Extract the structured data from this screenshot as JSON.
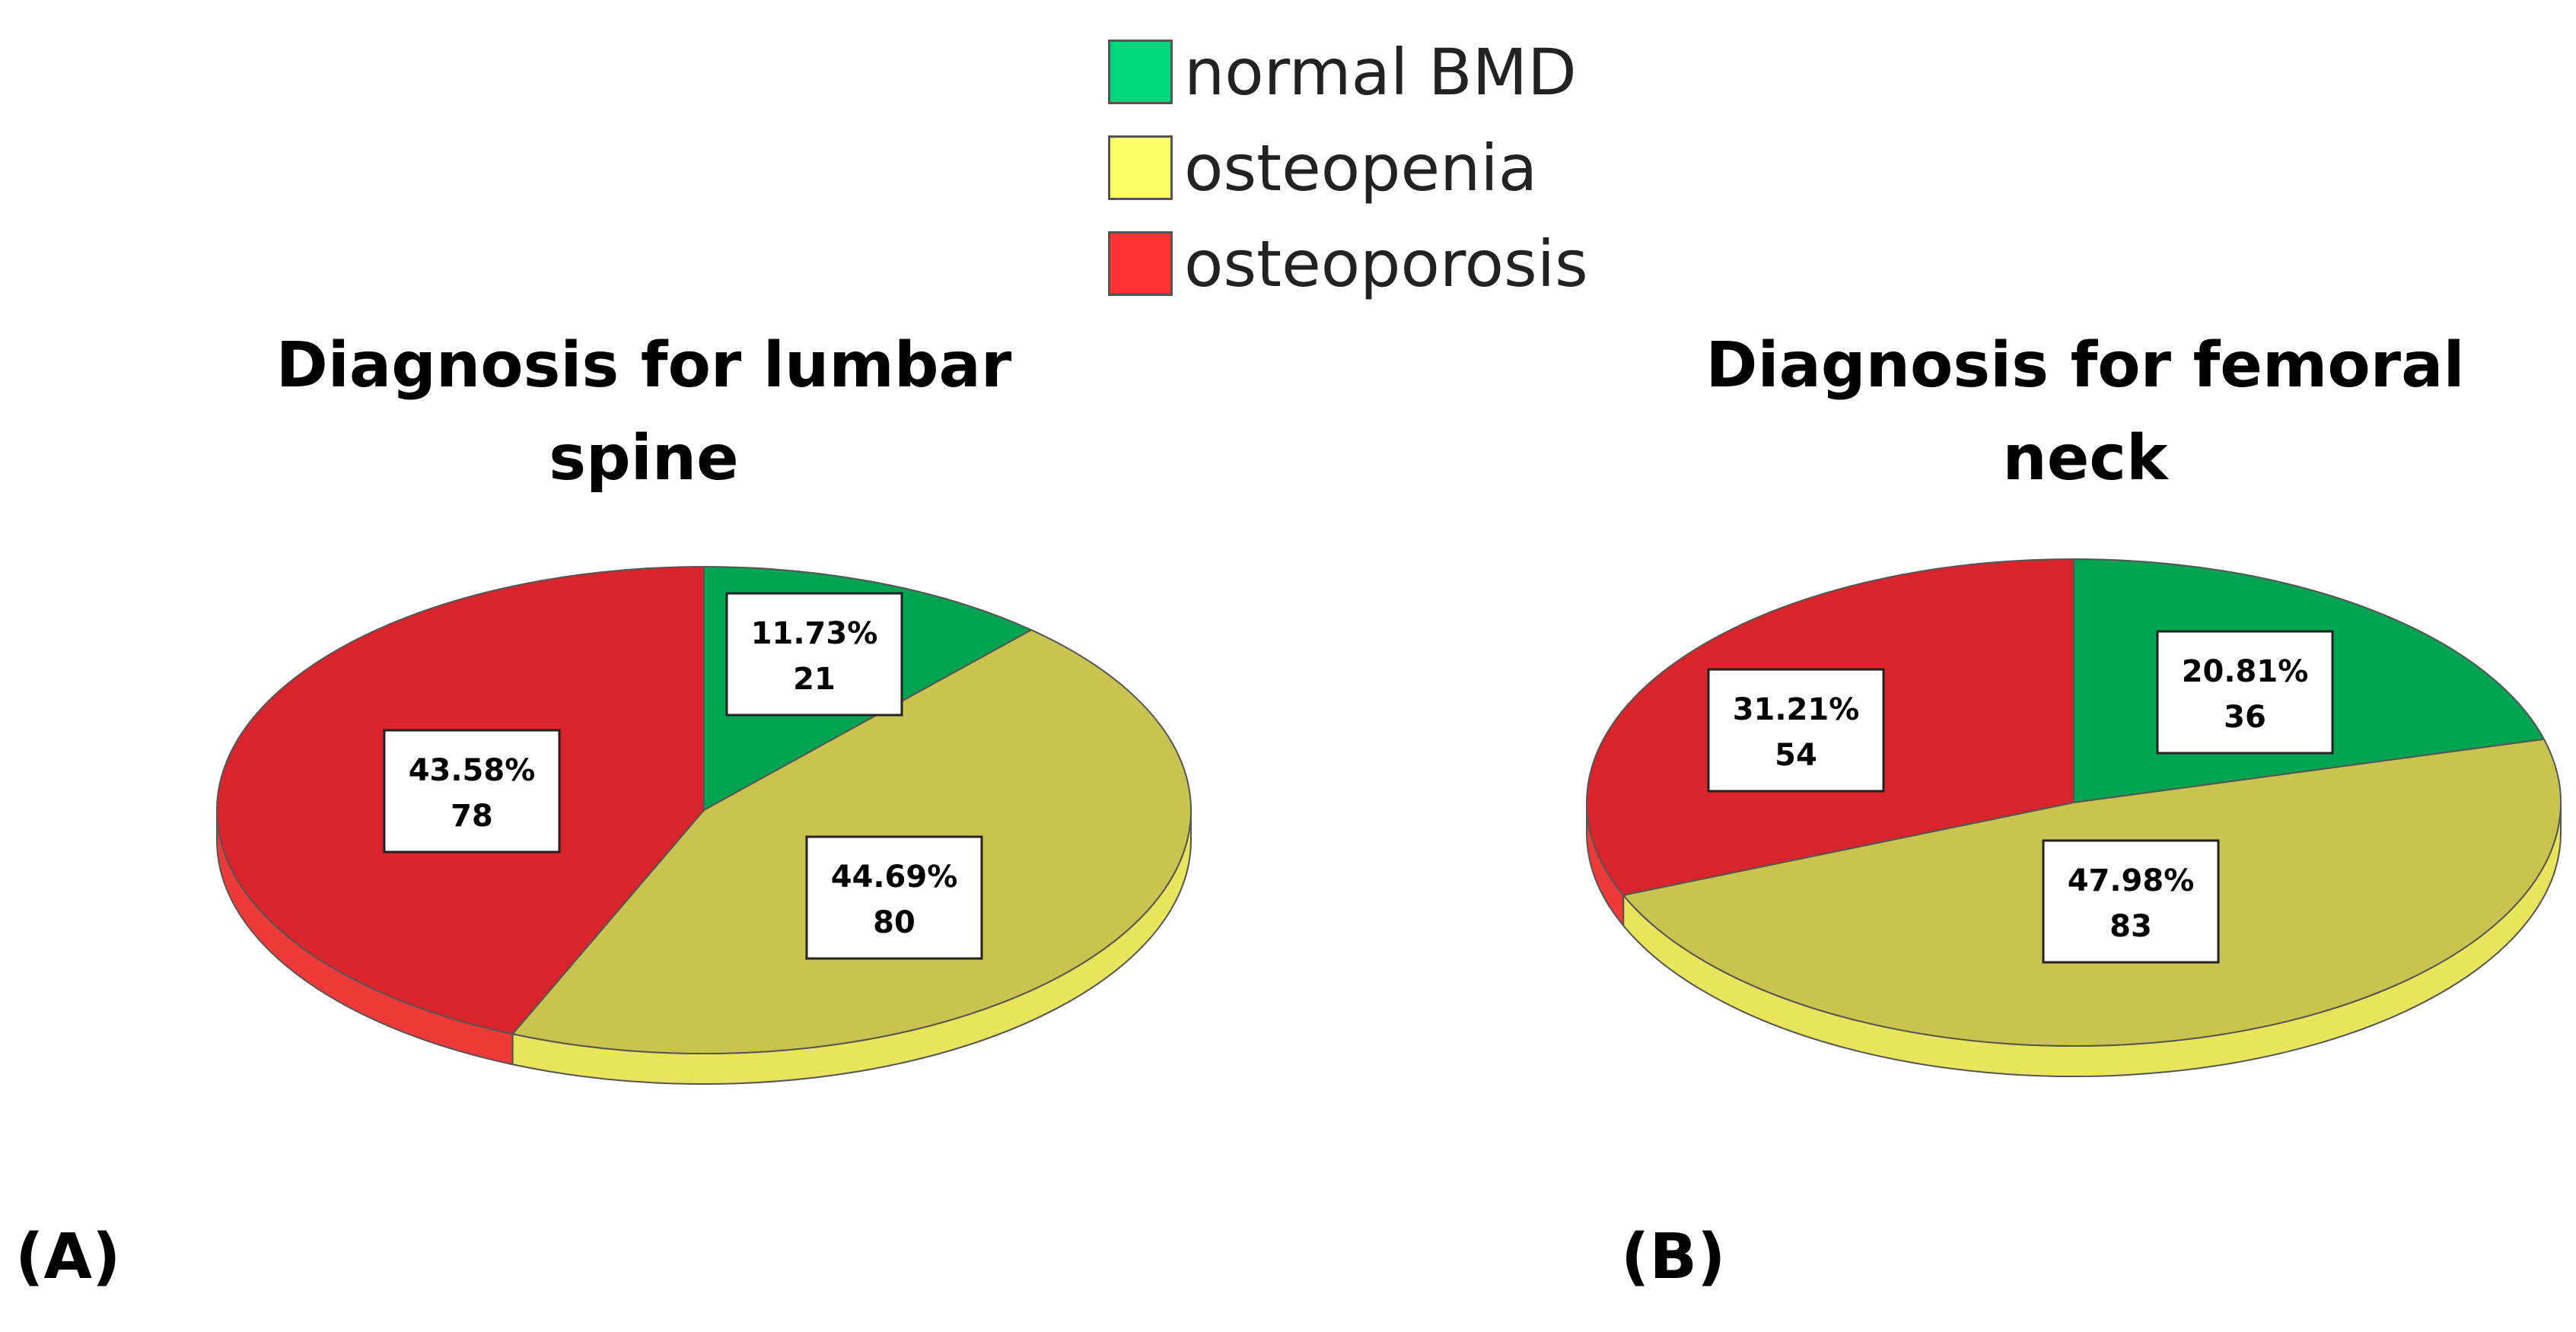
{
  "legend": {
    "items": [
      {
        "label": "normal BMD",
        "color": "#00d77a"
      },
      {
        "label": "osteopenia",
        "color": "#ffff66"
      },
      {
        "label": "osteoporosis",
        "color": "#ff3333"
      }
    ]
  },
  "chart_data": [
    {
      "type": "pie",
      "panel": "(A)",
      "title": "Diagnosis for lumbar spine",
      "title_lines": [
        "Diagnosis for lumbar",
        "spine"
      ],
      "slices": [
        {
          "category": "normal BMD",
          "percent": "11.73%",
          "count": "21",
          "value": 21
        },
        {
          "category": "osteopenia",
          "percent": "44.69%",
          "count": "80",
          "value": 80
        },
        {
          "category": "osteoporosis",
          "percent": "43.58%",
          "count": "78",
          "value": 78
        }
      ]
    },
    {
      "type": "pie",
      "panel": "(B)",
      "title": "Diagnosis for femoral neck",
      "title_lines": [
        "Diagnosis for femoral",
        "neck"
      ],
      "slices": [
        {
          "category": "normal BMD",
          "percent": "20.81%",
          "count": "36",
          "value": 36
        },
        {
          "category": "osteopenia",
          "percent": "47.98%",
          "count": "83",
          "value": 83
        },
        {
          "category": "osteoporosis",
          "percent": "31.21%",
          "count": "54",
          "value": 54
        }
      ]
    }
  ]
}
